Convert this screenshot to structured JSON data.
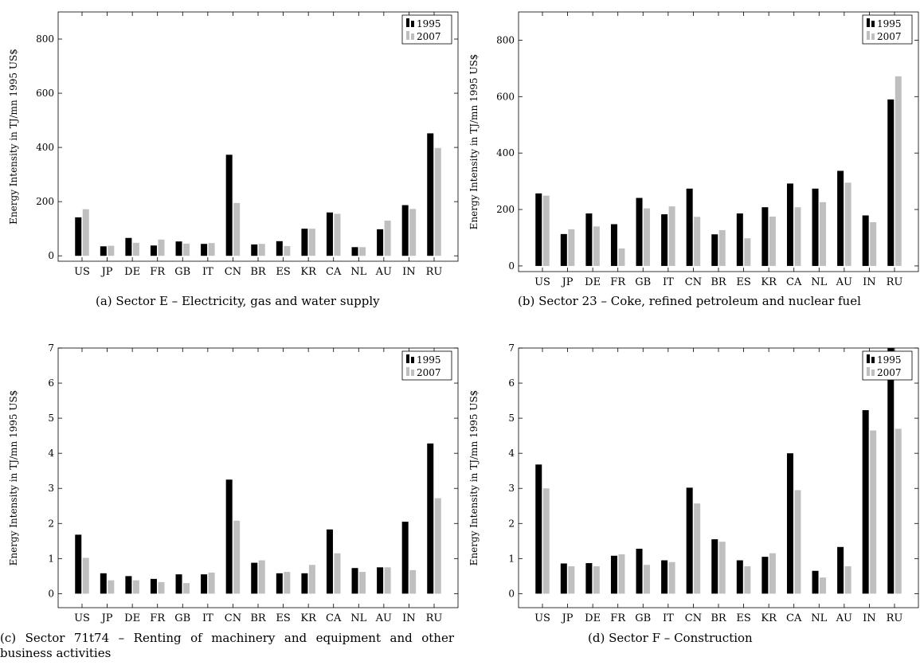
{
  "chart_data": [
    {
      "type": "bar",
      "caption": "(a) Sector E – Electricity, gas and water supply",
      "ylabel": "Energy Intensity in TJ/mn 1995 US$",
      "categories": [
        "US",
        "JP",
        "DE",
        "FR",
        "GB",
        "IT",
        "CN",
        "BR",
        "ES",
        "KR",
        "CA",
        "NL",
        "AU",
        "IN",
        "RU"
      ],
      "ylim": [
        -20,
        900
      ],
      "yticks": [
        0,
        200,
        400,
        600,
        800
      ],
      "legend_position": "top-right",
      "series": [
        {
          "name": "1995",
          "color": "#000000",
          "values": [
            142,
            35,
            66,
            38,
            53,
            44,
            373,
            42,
            54,
            100,
            160,
            32,
            98,
            187,
            452
          ]
        },
        {
          "name": "2007",
          "color": "#bfbfbf",
          "values": [
            172,
            37,
            48,
            60,
            45,
            47,
            195,
            44,
            36,
            100,
            155,
            32,
            130,
            173,
            398
          ]
        }
      ]
    },
    {
      "type": "bar",
      "caption": "(b) Sector 23 – Coke, refined petroleum and nuclear fuel",
      "ylabel": "Energy Intensity in TJ/mn 1995 US$",
      "categories": [
        "US",
        "JP",
        "DE",
        "FR",
        "GB",
        "IT",
        "CN",
        "BR",
        "ES",
        "KR",
        "CA",
        "NL",
        "AU",
        "IN",
        "RU"
      ],
      "ylim": [
        -20,
        900
      ],
      "yticks": [
        0,
        200,
        400,
        600,
        800
      ],
      "legend_position": "top-right",
      "series": [
        {
          "name": "1995",
          "color": "#000000",
          "values": [
            257,
            113,
            186,
            148,
            241,
            183,
            274,
            112,
            186,
            208,
            292,
            274,
            337,
            179,
            590
          ]
        },
        {
          "name": "2007",
          "color": "#bfbfbf",
          "values": [
            249,
            130,
            140,
            62,
            204,
            211,
            174,
            127,
            98,
            175,
            208,
            226,
            295,
            155,
            672
          ]
        }
      ]
    },
    {
      "type": "bar",
      "caption": "(c) Sector 71t74 – Renting of machinery and equipment and other business activities",
      "ylabel": "Energy Intensity in TJ/mn 1995 US$",
      "categories": [
        "US",
        "JP",
        "DE",
        "FR",
        "GB",
        "IT",
        "CN",
        "BR",
        "ES",
        "KR",
        "CA",
        "NL",
        "AU",
        "IN",
        "RU"
      ],
      "ylim": [
        -0.4,
        7
      ],
      "yticks": [
        0,
        1,
        2,
        3,
        4,
        5,
        6,
        7
      ],
      "legend_position": "top-right",
      "series": [
        {
          "name": "1995",
          "color": "#000000",
          "values": [
            1.68,
            0.58,
            0.5,
            0.42,
            0.55,
            0.55,
            3.25,
            0.88,
            0.58,
            0.58,
            1.83,
            0.73,
            0.75,
            2.05,
            4.28
          ]
        },
        {
          "name": "2007",
          "color": "#bfbfbf",
          "values": [
            1.02,
            0.38,
            0.38,
            0.33,
            0.3,
            0.6,
            2.08,
            0.95,
            0.62,
            0.82,
            1.15,
            0.62,
            0.75,
            0.67,
            2.72
          ]
        }
      ]
    },
    {
      "type": "bar",
      "caption": "(d) Sector F – Construction",
      "ylabel": "Energy Intensity in TJ/mn 1995 US$",
      "categories": [
        "US",
        "JP",
        "DE",
        "FR",
        "GB",
        "IT",
        "CN",
        "BR",
        "ES",
        "KR",
        "CA",
        "NL",
        "AU",
        "IN",
        "RU"
      ],
      "ylim": [
        -0.4,
        7
      ],
      "yticks": [
        0,
        1,
        2,
        3,
        4,
        5,
        6,
        7
      ],
      "legend_position": "top-right",
      "series": [
        {
          "name": "1995",
          "color": "#000000",
          "values": [
            3.68,
            0.86,
            0.87,
            1.08,
            1.28,
            0.95,
            3.02,
            1.55,
            0.95,
            1.05,
            4.0,
            0.65,
            1.33,
            5.23,
            7.0
          ]
        },
        {
          "name": "2007",
          "color": "#bfbfbf",
          "values": [
            3.0,
            0.78,
            0.78,
            1.12,
            0.82,
            0.9,
            2.57,
            1.48,
            0.78,
            1.15,
            2.95,
            0.46,
            0.78,
            4.65,
            4.7
          ]
        }
      ]
    }
  ]
}
